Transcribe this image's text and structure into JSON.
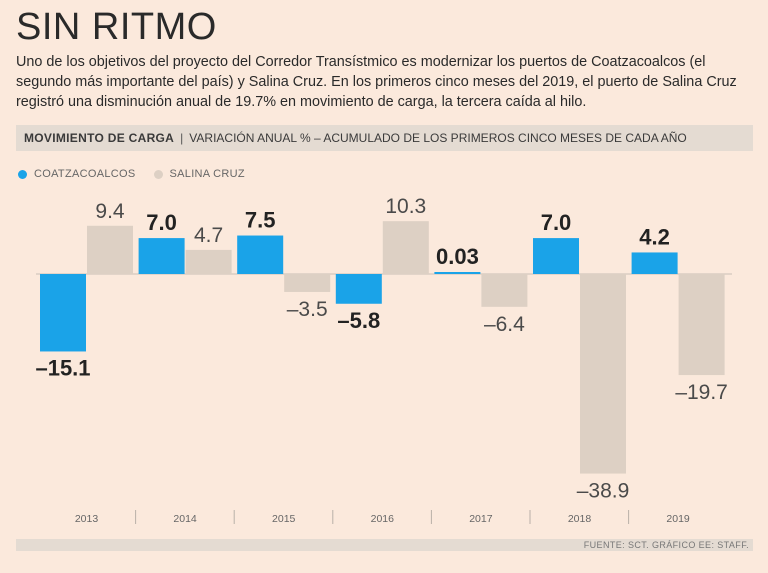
{
  "title": "SIN RITMO",
  "description": "Uno de los objetivos del proyecto del Corredor Transístmico es modernizar los puertos de Coatzacoalcos (el segundo más importante del país) y Salina Cruz. En los primeros cinco meses del 2019, el puerto de Salina Cruz registró una disminución anual de 19.7% en movimiento de carga, la tercera caída al hilo.",
  "subheader": {
    "bold": "MOVIMIENTO DE CARGA",
    "rest": "VARIACIÓN ANUAL % – ACUMULADO DE LOS PRIMEROS CINCO MESES DE CADA AÑO"
  },
  "legend": [
    {
      "label": "COATZACOALCOS",
      "color": "#1aa3e8"
    },
    {
      "label": "SALINA CRUZ",
      "color": "#ddd0c4"
    }
  ],
  "chart_data": {
    "type": "bar",
    "title": "MOVIMIENTO DE CARGA",
    "subtitle": "VARIACIÓN ANUAL % – ACUMULADO DE LOS PRIMEROS CINCO MESES DE CADA AÑO",
    "categories": [
      "2013",
      "2014",
      "2015",
      "2016",
      "2017",
      "2018",
      "2019"
    ],
    "series": [
      {
        "name": "COATZACOALCOS",
        "color": "#1aa3e8",
        "values": [
          -15.1,
          7.0,
          7.5,
          -5.8,
          0.03,
          7.0,
          4.2
        ],
        "labels": [
          "–15.1",
          "7.0",
          "7.5",
          "–5.8",
          "0.03",
          "7.0",
          "4.2"
        ]
      },
      {
        "name": "SALINA CRUZ",
        "color": "#ddd0c4",
        "values": [
          9.4,
          4.7,
          -3.5,
          10.3,
          -6.4,
          -38.9,
          -19.7
        ],
        "labels": [
          "9.4",
          "4.7",
          "–3.5",
          "10.3",
          "–6.4",
          "–38.9",
          "–19.7"
        ]
      }
    ],
    "ylim": [
      -38.9,
      10.3
    ],
    "xlabel": "",
    "ylabel": "",
    "legend_position": "top-left"
  },
  "source": "FUENTE: SCT. GRÁFICO EE: STAFF."
}
